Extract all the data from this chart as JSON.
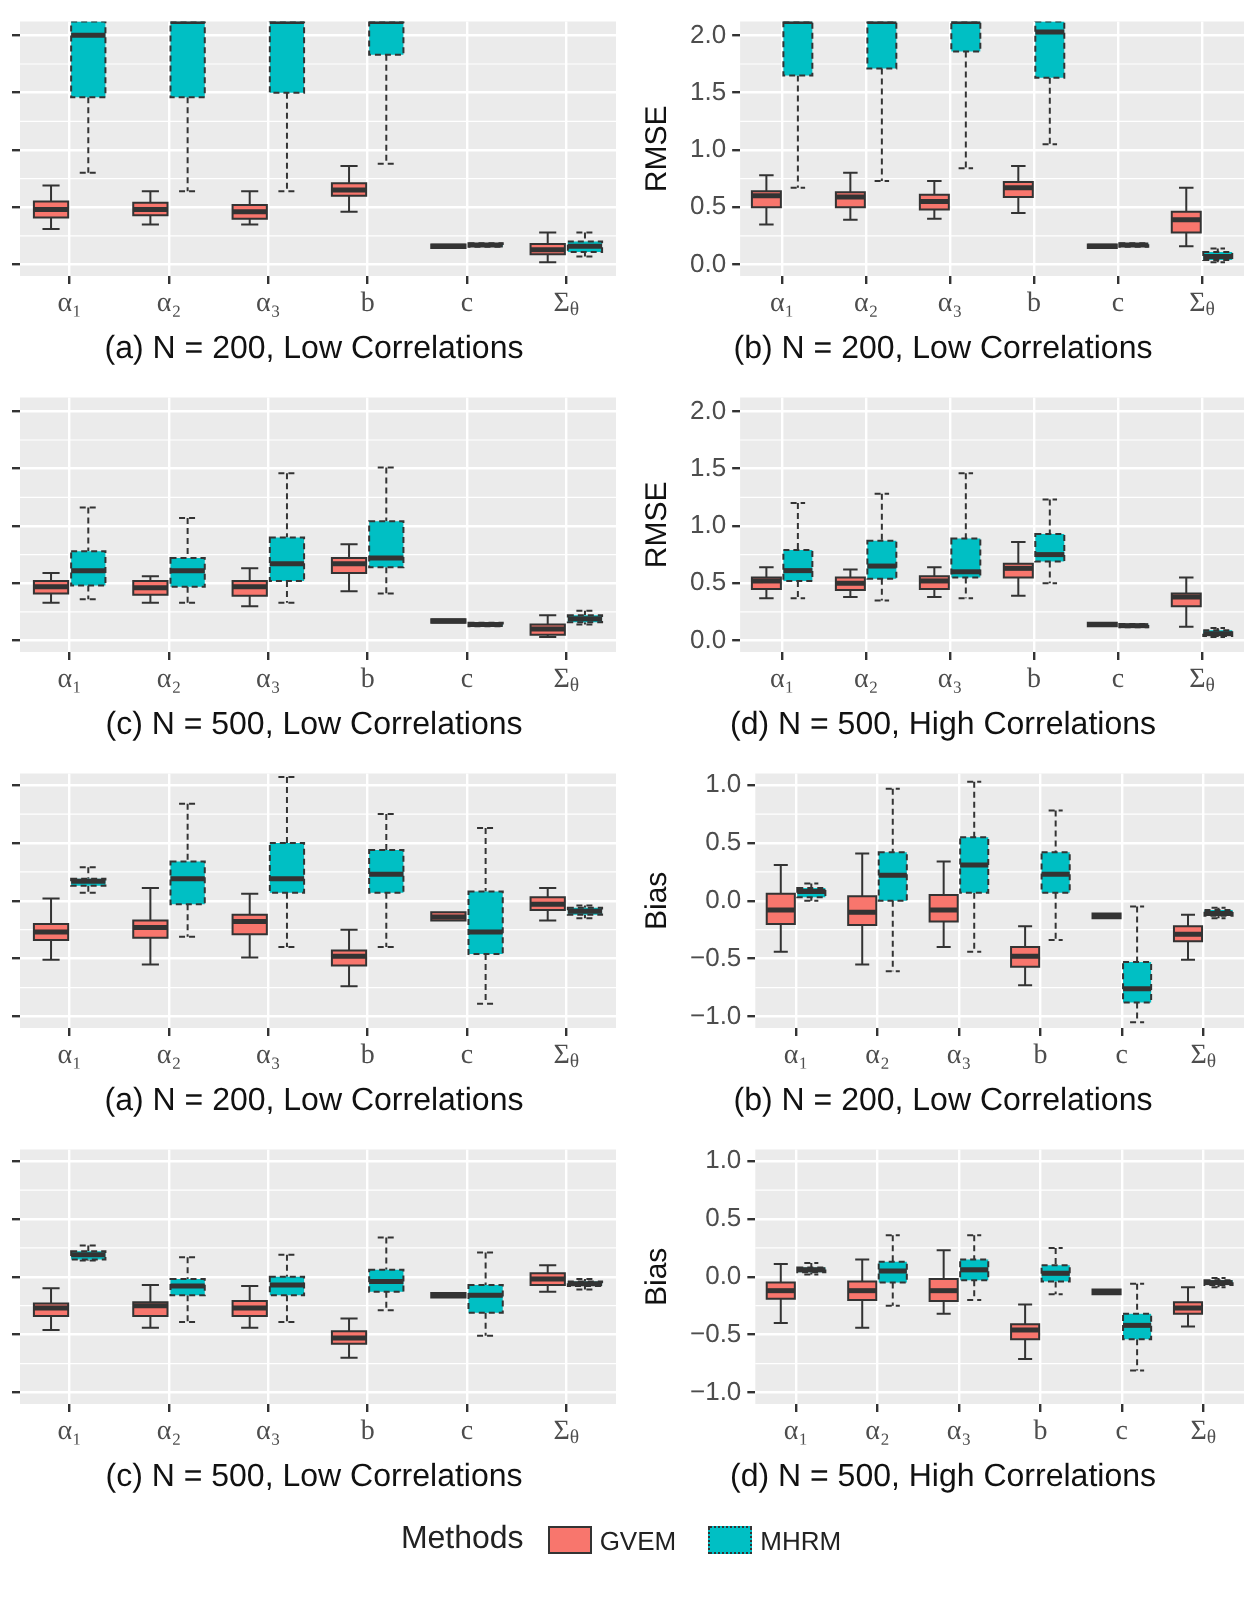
{
  "chart_data": [
    {
      "type": "box",
      "title": "(a) N = 200, Low Correlations",
      "categories": [
        "α₁",
        "α₂",
        "α₃",
        "b",
        "c",
        "Σ$_{θ}$"
      ],
      "ylim": [
        -0.1,
        2.12
      ],
      "yticks": [
        {
          "value": 0,
          "label": null
        },
        {
          "value": 0.5,
          "label": null
        },
        {
          "value": 1,
          "label": null
        },
        {
          "value": 1.5,
          "label": null
        },
        {
          "value": 2,
          "label": null
        }
      ],
      "tick_labels": "x",
      "grid": true,
      "series": [
        {
          "color": "#f8766d",
          "line_style": "solid",
          "boxes": [
            {
              "low": 0.31,
              "q1": 0.41,
              "median": 0.48,
              "q3": 0.55,
              "high": 0.69
            },
            {
              "low": 0.35,
              "q1": 0.43,
              "median": 0.48,
              "q3": 0.54,
              "high": 0.64
            },
            {
              "low": 0.35,
              "q1": 0.4,
              "median": 0.46,
              "q3": 0.52,
              "high": 0.64
            },
            {
              "low": 0.46,
              "q1": 0.6,
              "median": 0.65,
              "q3": 0.71,
              "high": 0.86
            },
            {
              "low": 0.145,
              "q1": 0.145,
              "median": 0.16,
              "q3": 0.175,
              "high": 0.175
            },
            {
              "low": 0.02,
              "q1": 0.09,
              "median": 0.13,
              "q3": 0.18,
              "high": 0.28
            }
          ]
        },
        {
          "color": "#00bfc4",
          "line_style": "dotted",
          "boxes": [
            {
              "low": 0.8,
              "q1": 1.46,
              "median": 2.0,
              "q3": 2.12,
              "high": 2.12
            },
            {
              "low": 0.64,
              "q1": 1.46,
              "median": 2.12,
              "q3": 2.12,
              "high": 2.12
            },
            {
              "low": 0.64,
              "q1": 1.5,
              "median": 2.12,
              "q3": 2.12,
              "high": 2.12
            },
            {
              "low": 0.88,
              "q1": 1.83,
              "median": 2.12,
              "q3": 2.12,
              "high": 2.12
            },
            {
              "low": 0.155,
              "q1": 0.155,
              "median": 0.17,
              "q3": 0.185,
              "high": 0.185
            },
            {
              "low": 0.07,
              "q1": 0.11,
              "median": 0.16,
              "q3": 0.2,
              "high": 0.28
            }
          ]
        }
      ]
    },
    {
      "type": "box",
      "title": "(b) N = 200, Low Correlations",
      "ylabel": "RMSE",
      "categories": [
        "α₁",
        "α₂",
        "α₃",
        "b",
        "c",
        "Σ$_{θ}$"
      ],
      "ylim": [
        -0.1,
        2.12
      ],
      "yticks": [
        {
          "value": 0,
          "label": "0.0"
        },
        {
          "value": 0.5,
          "label": "0.5"
        },
        {
          "value": 1,
          "label": "1.0"
        },
        {
          "value": 1.5,
          "label": "1.5"
        },
        {
          "value": 2,
          "label": "2.0"
        }
      ],
      "grid": true,
      "series": [
        {
          "color": "#f8766d",
          "line_style": "solid",
          "boxes": [
            {
              "low": 0.35,
              "q1": 0.5,
              "median": 0.6,
              "q3": 0.64,
              "high": 0.78
            },
            {
              "low": 0.39,
              "q1": 0.5,
              "median": 0.59,
              "q3": 0.63,
              "high": 0.8
            },
            {
              "low": 0.4,
              "q1": 0.48,
              "median": 0.55,
              "q3": 0.61,
              "high": 0.73
            },
            {
              "low": 0.45,
              "q1": 0.59,
              "median": 0.67,
              "q3": 0.72,
              "high": 0.86
            },
            {
              "low": 0.145,
              "q1": 0.145,
              "median": 0.16,
              "q3": 0.175,
              "high": 0.175
            },
            {
              "low": 0.16,
              "q1": 0.28,
              "median": 0.39,
              "q3": 0.46,
              "high": 0.67
            }
          ]
        },
        {
          "color": "#00bfc4",
          "line_style": "dotted",
          "boxes": [
            {
              "low": 0.67,
              "q1": 1.65,
              "median": 2.12,
              "q3": 2.12,
              "high": 2.12
            },
            {
              "low": 0.73,
              "q1": 1.71,
              "median": 2.12,
              "q3": 2.12,
              "high": 2.12
            },
            {
              "low": 0.84,
              "q1": 1.86,
              "median": 2.12,
              "q3": 2.12,
              "high": 2.12
            },
            {
              "low": 1.05,
              "q1": 1.63,
              "median": 2.03,
              "q3": 2.12,
              "high": 2.12
            },
            {
              "low": 0.155,
              "q1": 0.155,
              "median": 0.17,
              "q3": 0.185,
              "high": 0.185
            },
            {
              "low": 0.02,
              "q1": 0.04,
              "median": 0.07,
              "q3": 0.11,
              "high": 0.14
            }
          ]
        }
      ]
    },
    {
      "type": "box",
      "title": "(c) N = 500, Low Correlations",
      "categories": [
        "α₁",
        "α₂",
        "α₃",
        "b",
        "c",
        "Σ$_{θ}$"
      ],
      "ylim": [
        -0.1,
        2.12
      ],
      "yticks": [
        {
          "value": 0,
          "label": null
        },
        {
          "value": 0.5,
          "label": null
        },
        {
          "value": 1,
          "label": null
        },
        {
          "value": 1.5,
          "label": null
        },
        {
          "value": 2,
          "label": null
        }
      ],
      "tick_labels": "x",
      "grid": true,
      "series": [
        {
          "color": "#f8766d",
          "line_style": "solid",
          "boxes": [
            {
              "low": 0.33,
              "q1": 0.41,
              "median": 0.47,
              "q3": 0.52,
              "high": 0.59
            },
            {
              "low": 0.33,
              "q1": 0.4,
              "median": 0.46,
              "q3": 0.52,
              "high": 0.56
            },
            {
              "low": 0.3,
              "q1": 0.39,
              "median": 0.47,
              "q3": 0.52,
              "high": 0.63
            },
            {
              "low": 0.43,
              "q1": 0.59,
              "median": 0.67,
              "q3": 0.72,
              "high": 0.84
            },
            {
              "low": 0.155,
              "q1": 0.155,
              "median": 0.17,
              "q3": 0.185,
              "high": 0.185
            },
            {
              "low": 0.03,
              "q1": 0.05,
              "median": 0.1,
              "q3": 0.14,
              "high": 0.22
            }
          ]
        },
        {
          "color": "#00bfc4",
          "line_style": "dotted",
          "boxes": [
            {
              "low": 0.36,
              "q1": 0.48,
              "median": 0.61,
              "q3": 0.78,
              "high": 1.16
            },
            {
              "low": 0.33,
              "q1": 0.47,
              "median": 0.61,
              "q3": 0.72,
              "high": 1.07
            },
            {
              "low": 0.33,
              "q1": 0.52,
              "median": 0.67,
              "q3": 0.9,
              "high": 1.46
            },
            {
              "low": 0.41,
              "q1": 0.64,
              "median": 0.72,
              "q3": 1.04,
              "high": 1.51
            },
            {
              "low": 0.125,
              "q1": 0.125,
              "median": 0.14,
              "q3": 0.155,
              "high": 0.155
            },
            {
              "low": 0.14,
              "q1": 0.16,
              "median": 0.19,
              "q3": 0.22,
              "high": 0.26
            }
          ]
        }
      ]
    },
    {
      "type": "box",
      "title": "(d) N = 500, High Correlations",
      "ylabel": "RMSE",
      "categories": [
        "α₁",
        "α₂",
        "α₃",
        "b",
        "c",
        "Σ$_{θ}$"
      ],
      "ylim": [
        -0.1,
        2.12
      ],
      "yticks": [
        {
          "value": 0,
          "label": "0.0"
        },
        {
          "value": 0.5,
          "label": "0.5"
        },
        {
          "value": 1,
          "label": "1.0"
        },
        {
          "value": 1.5,
          "label": "1.5"
        },
        {
          "value": 2,
          "label": "2.0"
        }
      ],
      "grid": true,
      "series": [
        {
          "color": "#f8766d",
          "line_style": "solid",
          "boxes": [
            {
              "low": 0.37,
              "q1": 0.45,
              "median": 0.52,
              "q3": 0.55,
              "high": 0.64
            },
            {
              "low": 0.38,
              "q1": 0.44,
              "median": 0.5,
              "q3": 0.55,
              "high": 0.62
            },
            {
              "low": 0.38,
              "q1": 0.45,
              "median": 0.52,
              "q3": 0.56,
              "high": 0.64
            },
            {
              "low": 0.39,
              "q1": 0.55,
              "median": 0.63,
              "q3": 0.67,
              "high": 0.86
            },
            {
              "low": 0.125,
              "q1": 0.125,
              "median": 0.14,
              "q3": 0.155,
              "high": 0.155
            },
            {
              "low": 0.12,
              "q1": 0.3,
              "median": 0.38,
              "q3": 0.41,
              "high": 0.55
            }
          ]
        },
        {
          "color": "#00bfc4",
          "line_style": "dotted",
          "boxes": [
            {
              "low": 0.37,
              "q1": 0.52,
              "median": 0.61,
              "q3": 0.79,
              "high": 1.2
            },
            {
              "low": 0.35,
              "q1": 0.54,
              "median": 0.65,
              "q3": 0.87,
              "high": 1.28
            },
            {
              "low": 0.37,
              "q1": 0.55,
              "median": 0.6,
              "q3": 0.89,
              "high": 1.46
            },
            {
              "low": 0.5,
              "q1": 0.69,
              "median": 0.75,
              "q3": 0.93,
              "high": 1.23
            },
            {
              "low": 0.115,
              "q1": 0.115,
              "median": 0.13,
              "q3": 0.145,
              "high": 0.145
            },
            {
              "low": 0.03,
              "q1": 0.04,
              "median": 0.06,
              "q3": 0.09,
              "high": 0.11
            }
          ]
        }
      ]
    },
    {
      "type": "box",
      "title": "(a) N = 200, Low Correlations",
      "categories": [
        "α₁",
        "α₂",
        "α₃",
        "b",
        "c",
        "Σ$_{θ}$"
      ],
      "ylim": [
        -1.1,
        1.1
      ],
      "yticks": [
        {
          "value": -1,
          "label": null
        },
        {
          "value": -0.5,
          "label": null
        },
        {
          "value": 0,
          "label": null
        },
        {
          "value": 0.5,
          "label": null
        },
        {
          "value": 1,
          "label": null
        }
      ],
      "tick_labels": "x",
      "grid": true,
      "series": [
        {
          "color": "#f8766d",
          "line_style": "solid",
          "boxes": [
            {
              "low": -0.51,
              "q1": -0.34,
              "median": -0.27,
              "q3": -0.2,
              "high": 0.02
            },
            {
              "low": -0.55,
              "q1": -0.32,
              "median": -0.23,
              "q3": -0.17,
              "high": 0.11
            },
            {
              "low": -0.49,
              "q1": -0.29,
              "median": -0.18,
              "q3": -0.12,
              "high": 0.06
            },
            {
              "low": -0.74,
              "q1": -0.56,
              "median": -0.48,
              "q3": -0.43,
              "high": -0.25
            },
            {
              "low": -0.17,
              "q1": -0.17,
              "median": -0.14,
              "q3": -0.1,
              "high": -0.1
            },
            {
              "low": -0.17,
              "q1": -0.08,
              "median": -0.03,
              "q3": 0.03,
              "high": 0.11
            }
          ]
        },
        {
          "color": "#00bfc4",
          "line_style": "dotted",
          "boxes": [
            {
              "low": 0.07,
              "q1": 0.13,
              "median": 0.17,
              "q3": 0.19,
              "high": 0.29
            },
            {
              "low": -0.31,
              "q1": -0.03,
              "median": 0.19,
              "q3": 0.34,
              "high": 0.84
            },
            {
              "low": -0.4,
              "q1": 0.07,
              "median": 0.19,
              "q3": 0.5,
              "high": 1.07
            },
            {
              "low": -0.4,
              "q1": 0.07,
              "median": 0.23,
              "q3": 0.44,
              "high": 0.75
            },
            {
              "low": -0.89,
              "q1": -0.46,
              "median": -0.27,
              "q3": 0.08,
              "high": 0.63
            },
            {
              "low": -0.15,
              "q1": -0.12,
              "median": -0.09,
              "q3": -0.06,
              "high": -0.04
            }
          ]
        }
      ]
    },
    {
      "type": "box",
      "title": "(b) N = 200, Low Correlations",
      "ylabel": "Bias",
      "categories": [
        "α₁",
        "α₂",
        "α₃",
        "b",
        "c",
        "Σ$_{θ}$"
      ],
      "ylim": [
        -1.1,
        1.1
      ],
      "yticks": [
        {
          "value": -1,
          "label": "−1.0"
        },
        {
          "value": -0.5,
          "label": "−0.5"
        },
        {
          "value": 0,
          "label": "0.0"
        },
        {
          "value": 0.5,
          "label": "0.5"
        },
        {
          "value": 1,
          "label": "1.0"
        }
      ],
      "grid": true,
      "series": [
        {
          "color": "#f8766d",
          "line_style": "solid",
          "boxes": [
            {
              "low": -0.44,
              "q1": -0.2,
              "median": -0.08,
              "q3": 0.06,
              "high": 0.31
            },
            {
              "low": -0.55,
              "q1": -0.21,
              "median": -0.1,
              "q3": 0.04,
              "high": 0.41
            },
            {
              "low": -0.4,
              "q1": -0.18,
              "median": -0.08,
              "q3": 0.05,
              "high": 0.34
            },
            {
              "low": -0.73,
              "q1": -0.57,
              "median": -0.48,
              "q3": -0.4,
              "high": -0.22
            },
            {
              "low": -0.15,
              "q1": -0.15,
              "median": -0.13,
              "q3": -0.11,
              "high": -0.11
            },
            {
              "low": -0.51,
              "q1": -0.35,
              "median": -0.29,
              "q3": -0.22,
              "high": -0.12
            }
          ]
        },
        {
          "color": "#00bfc4",
          "line_style": "dotted",
          "boxes": [
            {
              "low": 0,
              "q1": 0.03,
              "median": 0.08,
              "q3": 0.11,
              "high": 0.15
            },
            {
              "low": -0.61,
              "q1": 0,
              "median": 0.22,
              "q3": 0.42,
              "high": 0.97
            },
            {
              "low": -0.44,
              "q1": 0.07,
              "median": 0.31,
              "q3": 0.55,
              "high": 1.03
            },
            {
              "low": -0.34,
              "q1": 0.07,
              "median": 0.23,
              "q3": 0.42,
              "high": 0.78
            },
            {
              "low": -1.05,
              "q1": -0.88,
              "median": -0.76,
              "q3": -0.53,
              "high": -0.05
            },
            {
              "low": -0.15,
              "q1": -0.13,
              "median": -0.11,
              "q3": -0.08,
              "high": -0.06
            }
          ]
        }
      ]
    },
    {
      "type": "box",
      "title": "(c) N = 500, Low Correlations",
      "categories": [
        "α₁",
        "α₂",
        "α₃",
        "b",
        "c",
        "Σ$_{θ}$"
      ],
      "ylim": [
        -1.1,
        1.1
      ],
      "yticks": [
        {
          "value": -1,
          "label": null
        },
        {
          "value": -0.5,
          "label": null
        },
        {
          "value": 0,
          "label": null
        },
        {
          "value": 0.5,
          "label": null
        },
        {
          "value": 1,
          "label": null
        }
      ],
      "tick_labels": "x",
      "grid": true,
      "series": [
        {
          "color": "#f8766d",
          "line_style": "solid",
          "boxes": [
            {
              "low": -0.46,
              "q1": -0.34,
              "median": -0.27,
              "q3": -0.23,
              "high": -0.1
            },
            {
              "low": -0.44,
              "q1": -0.34,
              "median": -0.25,
              "q3": -0.22,
              "high": -0.07
            },
            {
              "low": -0.44,
              "q1": -0.34,
              "median": -0.27,
              "q3": -0.21,
              "high": -0.08
            },
            {
              "low": -0.7,
              "q1": -0.58,
              "median": -0.53,
              "q3": -0.47,
              "high": -0.36
            },
            {
              "low": -0.18,
              "q1": -0.18,
              "median": -0.16,
              "q3": -0.14,
              "high": -0.14
            },
            {
              "low": -0.13,
              "q1": -0.07,
              "median": -0.02,
              "q3": 0.03,
              "high": 0.1
            }
          ]
        },
        {
          "color": "#00bfc4",
          "line_style": "dotted",
          "boxes": [
            {
              "low": 0.14,
              "q1": 0.15,
              "median": 0.19,
              "q3": 0.22,
              "high": 0.27
            },
            {
              "low": -0.39,
              "q1": -0.16,
              "median": -0.08,
              "q3": -0.02,
              "high": 0.17
            },
            {
              "low": -0.39,
              "q1": -0.16,
              "median": -0.07,
              "q3": 0,
              "high": 0.19
            },
            {
              "low": -0.29,
              "q1": -0.13,
              "median": -0.04,
              "q3": 0.06,
              "high": 0.34
            },
            {
              "low": -0.51,
              "q1": -0.31,
              "median": -0.16,
              "q3": -0.07,
              "high": 0.21
            },
            {
              "low": -0.11,
              "q1": -0.08,
              "median": -0.06,
              "q3": -0.04,
              "high": -0.02
            }
          ]
        }
      ]
    },
    {
      "type": "box",
      "title": "(d) N = 500, High Correlations",
      "ylabel": "Bias",
      "categories": [
        "α₁",
        "α₂",
        "α₃",
        "b",
        "c",
        "Σ$_{θ}$"
      ],
      "ylim": [
        -1.1,
        1.1
      ],
      "yticks": [
        {
          "value": -1,
          "label": "−1.0"
        },
        {
          "value": -0.5,
          "label": "−0.5"
        },
        {
          "value": 0,
          "label": "0.0"
        },
        {
          "value": 0.5,
          "label": "0.5"
        },
        {
          "value": 1,
          "label": "1.0"
        }
      ],
      "grid": true,
      "legend": "bottom",
      "legend_title": "Methods",
      "series": [
        {
          "name": "GVEM",
          "color": "#f8766d",
          "line_style": "solid",
          "boxes": [
            {
              "low": -0.4,
              "q1": -0.19,
              "median": -0.12,
              "q3": -0.05,
              "high": 0.11
            },
            {
              "low": -0.44,
              "q1": -0.2,
              "median": -0.12,
              "q3": -0.04,
              "high": 0.15
            },
            {
              "low": -0.32,
              "q1": -0.21,
              "median": -0.12,
              "q3": -0.02,
              "high": 0.23
            },
            {
              "low": -0.71,
              "q1": -0.54,
              "median": -0.46,
              "q3": -0.41,
              "high": -0.24
            },
            {
              "low": -0.15,
              "q1": -0.15,
              "median": -0.13,
              "q3": -0.11,
              "high": -0.11
            },
            {
              "low": -0.43,
              "q1": -0.32,
              "median": -0.27,
              "q3": -0.22,
              "high": -0.09
            }
          ]
        },
        {
          "name": "MHRM",
          "color": "#00bfc4",
          "line_style": "dotted",
          "boxes": [
            {
              "low": 0.02,
              "q1": 0.04,
              "median": 0.06,
              "q3": 0.08,
              "high": 0.12
            },
            {
              "low": -0.25,
              "q1": -0.05,
              "median": 0.05,
              "q3": 0.13,
              "high": 0.36
            },
            {
              "low": -0.2,
              "q1": -0.03,
              "median": 0.06,
              "q3": 0.15,
              "high": 0.36
            },
            {
              "low": -0.15,
              "q1": -0.04,
              "median": 0.03,
              "q3": 0.1,
              "high": 0.25
            },
            {
              "low": -0.81,
              "q1": -0.54,
              "median": -0.42,
              "q3": -0.32,
              "high": -0.06
            },
            {
              "low": -0.09,
              "q1": -0.07,
              "median": -0.05,
              "q3": -0.03,
              "high": -0.01
            }
          ]
        }
      ]
    }
  ]
}
